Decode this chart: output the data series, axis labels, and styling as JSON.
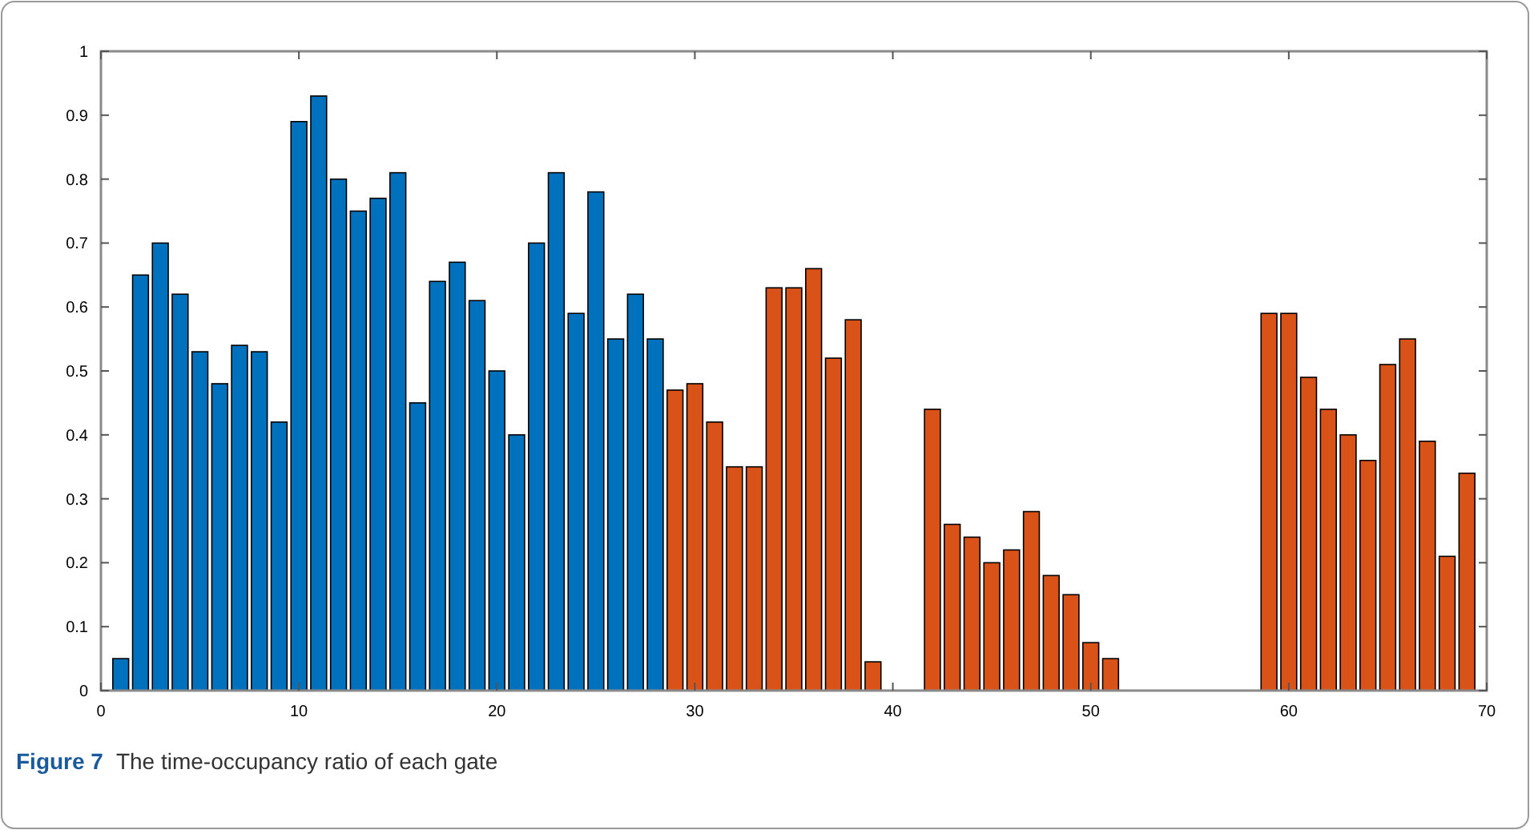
{
  "chart_data": {
    "type": "bar",
    "annotations": [
      "Figure 7",
      "The time-occupancy ratio of each gate"
    ],
    "xlim": [
      0,
      70
    ],
    "xticks": [
      0,
      10,
      20,
      30,
      40,
      50,
      60,
      70
    ],
    "ylim": [
      0,
      1
    ],
    "yticks": [
      0,
      0.1,
      0.2,
      0.3,
      0.4,
      0.5,
      0.6,
      0.7,
      0.8,
      0.9,
      1
    ],
    "grid": false,
    "series": [
      {
        "color": "#0072bd",
        "x": [
          1,
          2,
          3,
          4,
          5,
          6,
          7,
          8,
          9,
          10,
          11,
          12,
          13,
          14,
          15,
          16,
          17,
          18,
          19,
          20,
          21,
          22,
          23,
          24,
          25,
          26,
          27,
          28
        ],
        "values": [
          0.05,
          0.65,
          0.7,
          0.62,
          0.53,
          0.48,
          0.54,
          0.53,
          0.42,
          0.89,
          0.93,
          0.8,
          0.75,
          0.77,
          0.81,
          0.45,
          0.64,
          0.67,
          0.61,
          0.5,
          0.4,
          0.7,
          0.81,
          0.59,
          0.78,
          0.55,
          0.62,
          0.55
        ]
      },
      {
        "color": "#d95319",
        "x": [
          29,
          30,
          31,
          32,
          33,
          34,
          35,
          36,
          37,
          38,
          39,
          42,
          43,
          44,
          45,
          46,
          47,
          48,
          49,
          50,
          51,
          59,
          60,
          61,
          62,
          63,
          64,
          65,
          66,
          67,
          68,
          69
        ],
        "values": [
          0.47,
          0.48,
          0.42,
          0.35,
          0.35,
          0.63,
          0.63,
          0.66,
          0.52,
          0.58,
          0.045,
          0.44,
          0.26,
          0.24,
          0.2,
          0.22,
          0.28,
          0.18,
          0.15,
          0.075,
          0.05,
          0.59,
          0.59,
          0.49,
          0.44,
          0.4,
          0.36,
          0.51,
          0.55,
          0.39,
          0.21,
          0.34
        ]
      }
    ]
  }
}
